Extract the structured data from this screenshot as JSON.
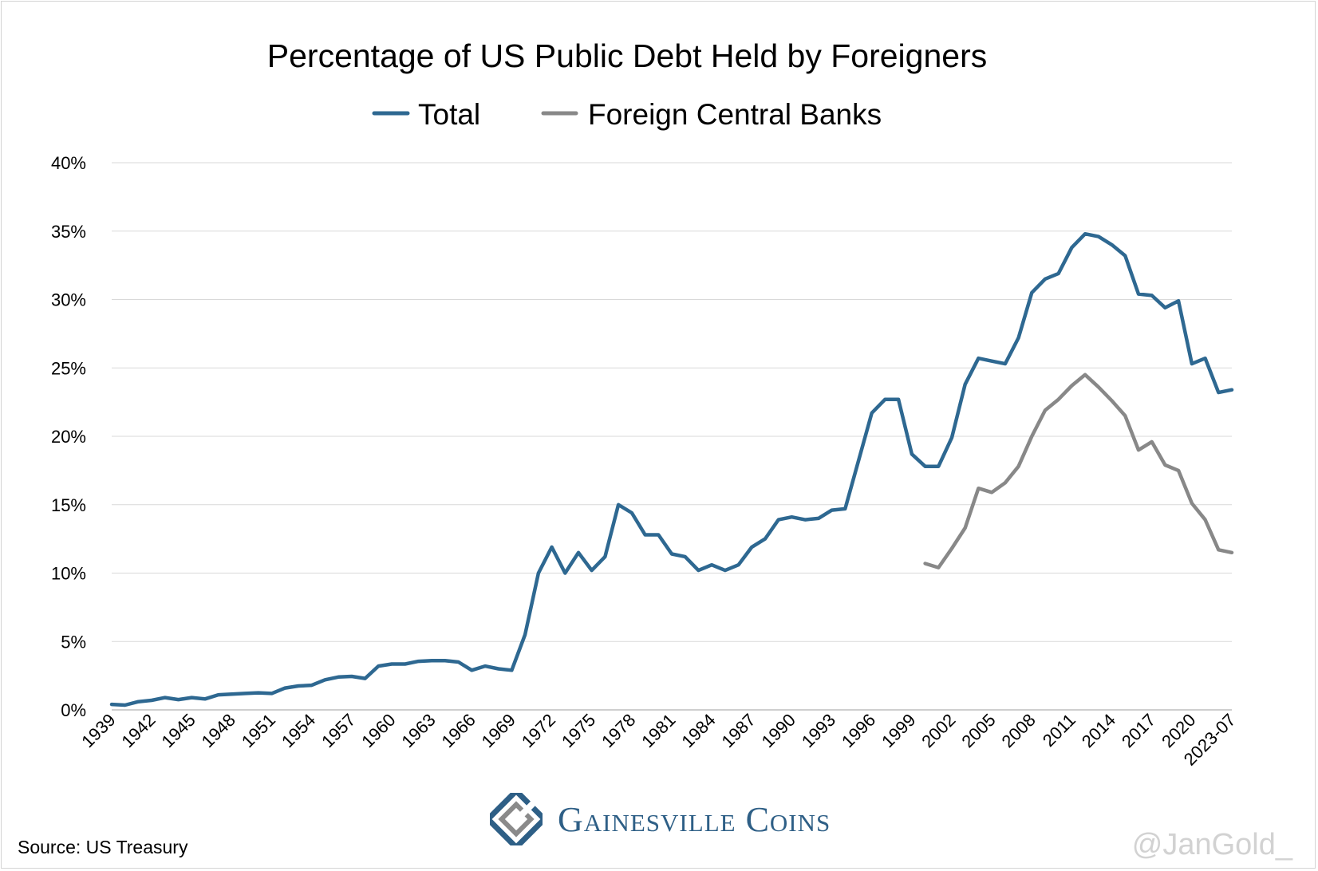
{
  "chart_data": {
    "type": "line",
    "title": "Percentage of US Public Debt Held by Foreigners",
    "xlabel": "",
    "ylabel": "",
    "ylim": [
      0,
      40
    ],
    "yticks": [
      "0%",
      "5%",
      "10%",
      "15%",
      "20%",
      "25%",
      "30%",
      "35%",
      "40%"
    ],
    "grid": true,
    "legend_position": "top-center",
    "x_tick_labels": [
      "1939",
      "1942",
      "1945",
      "1948",
      "1951",
      "1954",
      "1957",
      "1960",
      "1963",
      "1966",
      "1969",
      "1972",
      "1975",
      "1978",
      "1981",
      "1984",
      "1987",
      "1990",
      "1993",
      "1996",
      "1999",
      "2002",
      "2005",
      "2008",
      "2011",
      "2014",
      "2017",
      "2020",
      "2023-07"
    ],
    "x": [
      1939,
      1940,
      1941,
      1942,
      1943,
      1944,
      1945,
      1946,
      1947,
      1948,
      1949,
      1950,
      1951,
      1952,
      1953,
      1954,
      1955,
      1956,
      1957,
      1958,
      1959,
      1960,
      1961,
      1962,
      1963,
      1964,
      1965,
      1966,
      1967,
      1968,
      1969,
      1970,
      1971,
      1972,
      1973,
      1974,
      1975,
      1976,
      1977,
      1978,
      1979,
      1980,
      1981,
      1982,
      1983,
      1984,
      1985,
      1986,
      1987,
      1988,
      1989,
      1990,
      1991,
      1992,
      1993,
      1994,
      1995,
      1996,
      1997,
      1998,
      1999,
      2000,
      2001,
      2002,
      2003,
      2004,
      2005,
      2006,
      2007,
      2008,
      2009,
      2010,
      2011,
      2012,
      2013,
      2014,
      2015,
      2016,
      2017,
      2018,
      2019,
      2020,
      2021,
      2022,
      "2023-07"
    ],
    "series": [
      {
        "name": "Total",
        "color": "#2e6891",
        "values": [
          0.4,
          0.35,
          0.6,
          0.7,
          0.9,
          0.75,
          0.9,
          0.8,
          1.1,
          1.15,
          1.2,
          1.25,
          1.2,
          1.6,
          1.75,
          1.8,
          2.2,
          2.4,
          2.45,
          2.3,
          3.2,
          3.35,
          3.35,
          3.55,
          3.6,
          3.6,
          3.5,
          2.9,
          3.2,
          3.0,
          2.9,
          5.5,
          10.0,
          11.9,
          10.0,
          11.5,
          10.2,
          11.2,
          15.0,
          14.4,
          12.8,
          12.8,
          11.4,
          11.2,
          10.2,
          10.6,
          10.2,
          10.6,
          11.9,
          12.5,
          13.9,
          14.1,
          13.9,
          14.0,
          14.6,
          14.7,
          18.2,
          21.7,
          22.7,
          22.7,
          18.7,
          17.8,
          17.8,
          19.9,
          23.8,
          25.7,
          25.5,
          25.3,
          27.2,
          30.5,
          31.5,
          31.9,
          33.8,
          34.8,
          34.6,
          34.0,
          33.2,
          30.4,
          30.3,
          29.4,
          29.9,
          25.3,
          25.7,
          23.2,
          23.4
        ]
      },
      {
        "name": "Foreign Central Banks",
        "color": "#888888",
        "values": [
          null,
          null,
          null,
          null,
          null,
          null,
          null,
          null,
          null,
          null,
          null,
          null,
          null,
          null,
          null,
          null,
          null,
          null,
          null,
          null,
          null,
          null,
          null,
          null,
          null,
          null,
          null,
          null,
          null,
          null,
          null,
          null,
          null,
          null,
          null,
          null,
          null,
          null,
          null,
          null,
          null,
          null,
          null,
          null,
          null,
          null,
          null,
          null,
          null,
          null,
          null,
          null,
          null,
          null,
          null,
          null,
          null,
          null,
          null,
          null,
          null,
          10.7,
          10.4,
          11.8,
          13.3,
          16.2,
          15.9,
          16.6,
          17.8,
          20.0,
          21.9,
          22.7,
          23.7,
          24.5,
          23.6,
          22.6,
          21.5,
          19.0,
          19.6,
          17.9,
          17.5,
          15.1,
          13.9,
          11.7,
          11.5
        ]
      }
    ]
  },
  "footer": {
    "source": "Source: US Treasury",
    "brand": "Gainesville Coins",
    "watermark": "@JanGold_"
  },
  "colors": {
    "total": "#2e6891",
    "central_banks": "#888888",
    "grid": "#d9d9d9",
    "brand": "#2e5f86"
  }
}
